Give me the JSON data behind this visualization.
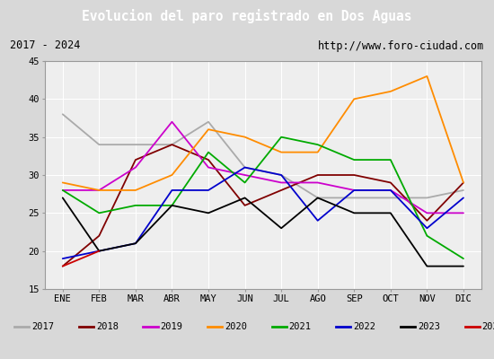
{
  "title": "Evolucion del paro registrado en Dos Aguas",
  "subtitle_left": "2017 - 2024",
  "subtitle_right": "http://www.foro-ciudad.com",
  "months": [
    "ENE",
    "FEB",
    "MAR",
    "ABR",
    "MAY",
    "JUN",
    "JUL",
    "AGO",
    "SEP",
    "OCT",
    "NOV",
    "DIC"
  ],
  "ylim": [
    15,
    45
  ],
  "yticks": [
    15,
    20,
    25,
    30,
    35,
    40,
    45
  ],
  "series": {
    "2017": {
      "color": "#aaaaaa",
      "values": [
        38,
        34,
        34,
        34,
        37,
        31,
        30,
        27,
        27,
        27,
        27,
        28
      ]
    },
    "2018": {
      "color": "#800000",
      "values": [
        18,
        22,
        32,
        34,
        32,
        26,
        28,
        30,
        30,
        29,
        24,
        29
      ]
    },
    "2019": {
      "color": "#cc00cc",
      "values": [
        28,
        28,
        31,
        37,
        31,
        30,
        29,
        29,
        28,
        28,
        25,
        25
      ]
    },
    "2020": {
      "color": "#ff8c00",
      "values": [
        29,
        28,
        28,
        30,
        36,
        35,
        33,
        33,
        40,
        41,
        43,
        29
      ]
    },
    "2021": {
      "color": "#00aa00",
      "values": [
        28,
        25,
        26,
        26,
        33,
        29,
        35,
        34,
        32,
        32,
        22,
        19
      ]
    },
    "2022": {
      "color": "#0000cc",
      "values": [
        19,
        20,
        21,
        28,
        28,
        31,
        30,
        24,
        28,
        28,
        23,
        27
      ]
    },
    "2023": {
      "color": "#000000",
      "values": [
        27,
        20,
        21,
        26,
        25,
        27,
        23,
        27,
        25,
        25,
        18,
        18
      ]
    },
    "2024": {
      "color": "#cc0000",
      "values": [
        18,
        20,
        null,
        null,
        null,
        null,
        null,
        null,
        null,
        null,
        null,
        null
      ]
    }
  },
  "background_color": "#d8d8d8",
  "plot_bg_color": "#eeeeee",
  "title_bg_color": "#4f81bd",
  "title_color": "#ffffff",
  "grid_color": "#ffffff",
  "legend_bg": "#e0e0e0",
  "subtitle_bg": "#d0d0d0"
}
